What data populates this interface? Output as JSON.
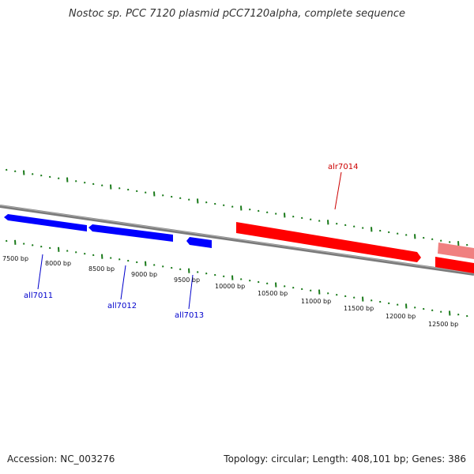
{
  "title": "Nostoc sp. PCC 7120 plasmid pCC7120alpha, complete sequence",
  "footer": {
    "accession": "Accession: NC_003276",
    "summary": "Topology: circular; Length: 408,101 bp; Genes: 386"
  },
  "colors": {
    "backbone": "#7a7a7a",
    "ticks": "#1a7a1a",
    "reverse_gene": "#0000ff",
    "forward_gene": "#ff0000",
    "forward_gene_faded": "#f08080",
    "reverse_label": "#0000cc",
    "forward_label": "#cc0000"
  },
  "position_labels": [
    "7500 bp",
    "8000 bp",
    "8500 bp",
    "9000 bp",
    "9500 bp",
    "10000 bp",
    "10500 bp",
    "11000 bp",
    "11500 bp",
    "12000 bp",
    "12500 bp"
  ],
  "genes": [
    {
      "id": "all7011",
      "strand": "reverse",
      "color": "#0000ff"
    },
    {
      "id": "all7012",
      "strand": "reverse",
      "color": "#0000ff"
    },
    {
      "id": "all7013",
      "strand": "reverse",
      "color": "#0000ff"
    },
    {
      "id": "alr7014",
      "strand": "forward",
      "color": "#ff0000"
    },
    {
      "id": "",
      "strand": "forward",
      "color": "#f08080"
    }
  ]
}
